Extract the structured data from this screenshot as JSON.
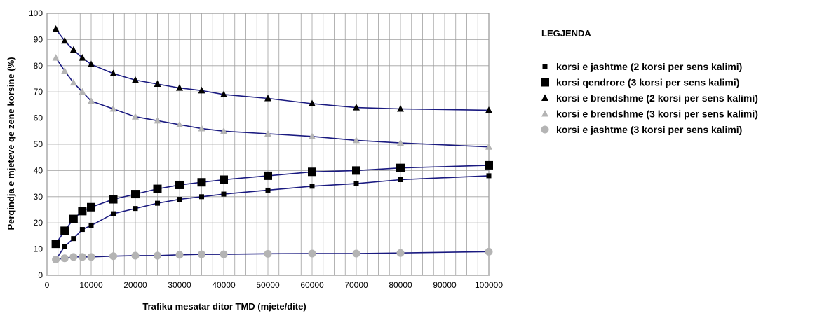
{
  "chart_data": {
    "type": "scatter",
    "xlabel": "Trafiku mesatar ditor TMD (mjete/dite)",
    "ylabel": "Perqindja e mjeteve qe zene korsine (%)",
    "xlim": [
      0,
      100000
    ],
    "ylim": [
      0,
      100
    ],
    "x_ticks": [
      "0",
      "10000",
      "20000",
      "30000",
      "40000",
      "50000",
      "60000",
      "70000",
      "80000",
      "90000",
      "100000"
    ],
    "y_ticks": [
      "0",
      "10",
      "20",
      "30",
      "40",
      "50",
      "60",
      "70",
      "80",
      "90",
      "100"
    ],
    "grid": true,
    "legend_title": "LEGJENDA",
    "legend_position": "right",
    "trend_line_color": "#1a1a80",
    "series": [
      {
        "name": "korsi e jashtme (2 korsi per sens kalimi)",
        "marker": "small-square",
        "color": "#000000",
        "x": [
          2000,
          4000,
          6000,
          8000,
          10000,
          15000,
          20000,
          25000,
          30000,
          35000,
          40000,
          50000,
          60000,
          70000,
          80000,
          100000
        ],
        "y": [
          6,
          11,
          14,
          17.5,
          19,
          23.5,
          25.5,
          27.5,
          29,
          30,
          31,
          32.5,
          34,
          35,
          36.5,
          38
        ]
      },
      {
        "name": "korsi qendrore (3 korsi per sens kalimi)",
        "marker": "large-square",
        "color": "#000000",
        "x": [
          2000,
          4000,
          6000,
          8000,
          10000,
          15000,
          20000,
          25000,
          30000,
          35000,
          40000,
          50000,
          60000,
          70000,
          80000,
          100000
        ],
        "y": [
          12,
          17,
          21.5,
          24.5,
          26,
          29,
          31,
          33,
          34.5,
          35.5,
          36.5,
          38,
          39.5,
          40,
          41,
          42
        ]
      },
      {
        "name": "korsi e brendshme (2 korsi per sens kalimi)",
        "marker": "triangle",
        "color": "#000000",
        "x": [
          2000,
          4000,
          6000,
          8000,
          10000,
          15000,
          20000,
          25000,
          30000,
          35000,
          40000,
          50000,
          60000,
          70000,
          80000,
          100000
        ],
        "y": [
          94,
          89.5,
          86,
          83,
          80.5,
          77,
          74.5,
          73,
          71.5,
          70.5,
          69,
          67.5,
          65.5,
          64,
          63.5,
          63
        ]
      },
      {
        "name": "korsi e brendshme (3 korsi per sens kalimi)",
        "marker": "triangle",
        "color": "#b4b4b4",
        "x": [
          2000,
          4000,
          6000,
          8000,
          10000,
          15000,
          20000,
          25000,
          30000,
          35000,
          40000,
          50000,
          60000,
          70000,
          80000,
          100000
        ],
        "y": [
          83,
          78,
          73.5,
          70,
          66.5,
          63.5,
          60.5,
          59,
          57.5,
          56,
          55,
          54,
          53,
          51.5,
          50.5,
          49
        ]
      },
      {
        "name": "korsi e jashtme (3 korsi per sens kalimi)",
        "marker": "circle",
        "color": "#b4b4b4",
        "x": [
          2000,
          4000,
          6000,
          8000,
          10000,
          15000,
          20000,
          25000,
          30000,
          35000,
          40000,
          50000,
          60000,
          70000,
          80000,
          100000
        ],
        "y": [
          6,
          6.5,
          7,
          7,
          7,
          7.3,
          7.5,
          7.5,
          7.8,
          8,
          8,
          8.2,
          8.3,
          8.3,
          8.5,
          9
        ]
      }
    ]
  }
}
